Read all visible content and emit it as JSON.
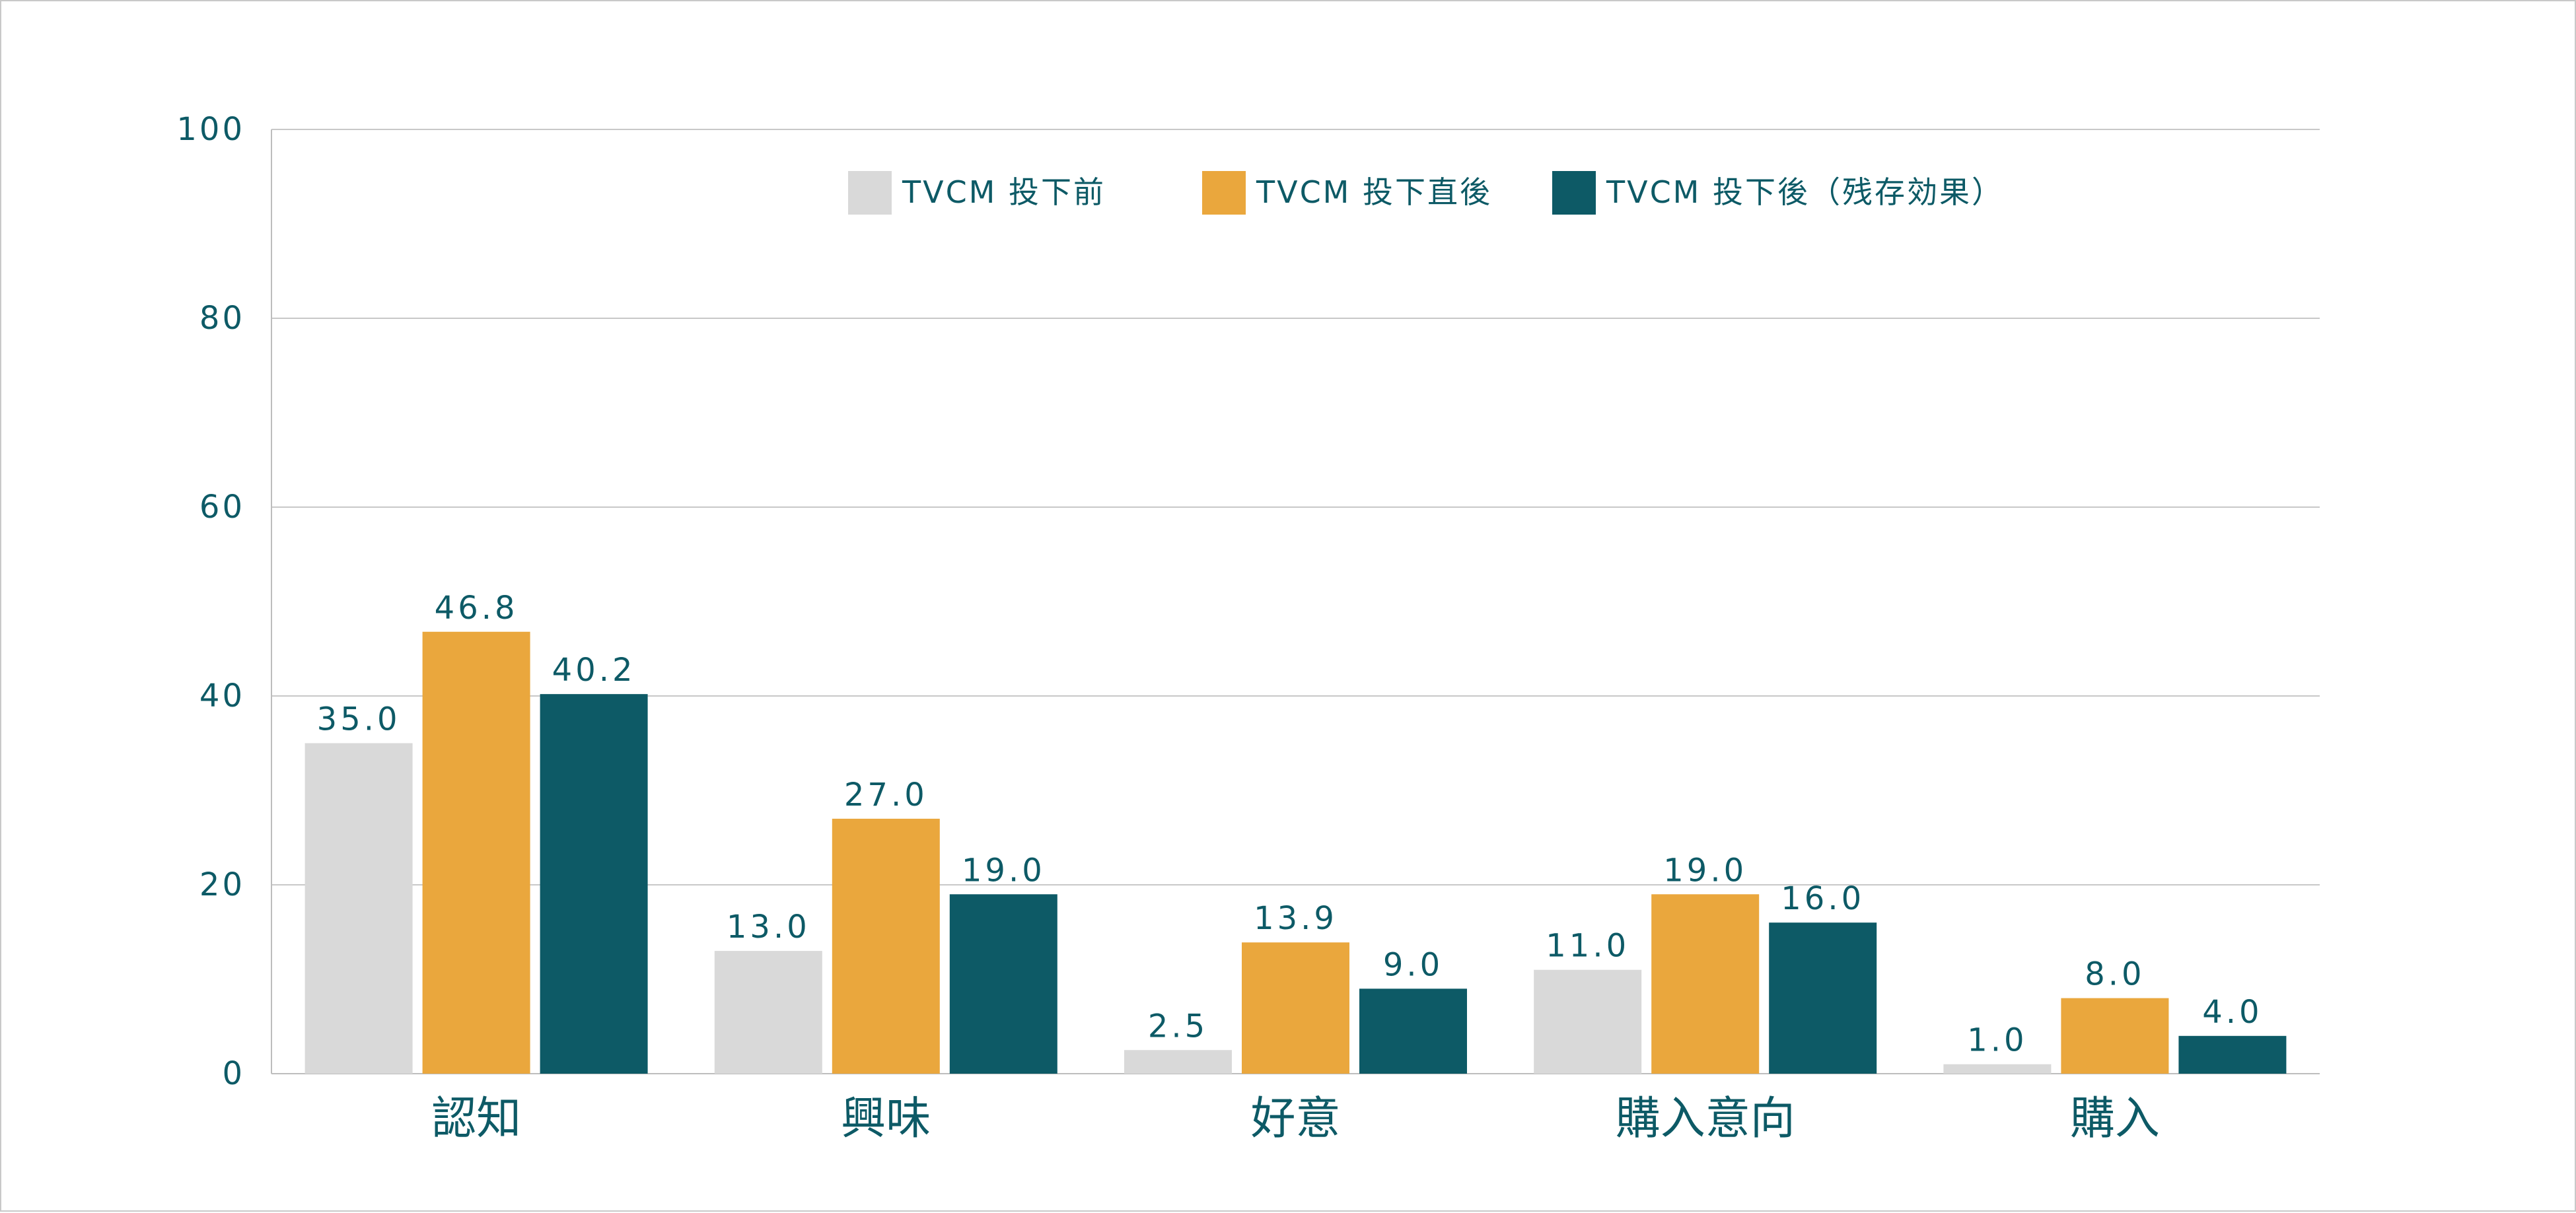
{
  "chart_data": {
    "type": "bar",
    "title": "",
    "xlabel": "",
    "ylabel": "",
    "ylim": [
      0,
      100
    ],
    "yticks": [
      0,
      20,
      40,
      60,
      80,
      100
    ],
    "grid": true,
    "legend_position": "top-center",
    "categories": [
      "認知",
      "興味",
      "好意",
      "購入意向",
      "購入"
    ],
    "series": [
      {
        "name": "TVCM 投下前",
        "color": "#d9d9d9",
        "values": [
          35.0,
          13.0,
          2.5,
          11.0,
          1.0
        ],
        "labels": [
          "35.0",
          "13.0",
          "2.5",
          "11.0",
          "1.0"
        ]
      },
      {
        "name": "TVCM 投下直後",
        "color": "#eaa73d",
        "values": [
          46.8,
          27.0,
          13.9,
          19.0,
          8.0
        ],
        "labels": [
          "46.8",
          "27.0",
          "13.9",
          "19.0",
          "8.0"
        ]
      },
      {
        "name": "TVCM 投下後（残存効果）",
        "color": "#0d5a66",
        "values": [
          40.2,
          19.0,
          9.0,
          16.0,
          4.0
        ],
        "labels": [
          "40.2",
          "19.0",
          "9.0",
          "16.0",
          "4.0"
        ]
      }
    ]
  },
  "colors": {
    "text": "#0d5a66",
    "grid": "#c8c8c8",
    "axis": "#bdbdbd"
  }
}
